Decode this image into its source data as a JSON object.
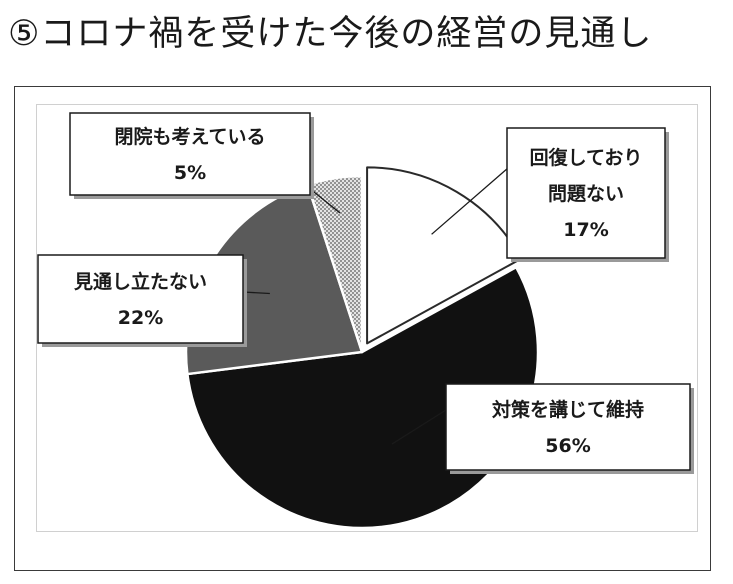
{
  "page": {
    "title": "⑤コロナ禍を受けた今後の経営の見通し"
  },
  "chart_data": {
    "type": "pie",
    "start_angle_deg": 0,
    "direction": "clockwise",
    "legend": "none (callout labels)",
    "slices": [
      {
        "label_lines": [
          "回復しており",
          "問題ない"
        ],
        "value": 17,
        "value_label": "17%",
        "color": "#ffffff",
        "pattern": "none",
        "exploded": true
      },
      {
        "label_lines": [
          "対策を講じて維持"
        ],
        "value": 56,
        "value_label": "56%",
        "color": "#111111",
        "pattern": "none",
        "exploded": false
      },
      {
        "label_lines": [
          "見通し立たない"
        ],
        "value": 22,
        "value_label": "22%",
        "color": "#5a5a5a",
        "pattern": "none",
        "exploded": false
      },
      {
        "label_lines": [
          "閉院も考えている"
        ],
        "value": 5,
        "value_label": "5%",
        "color": "#d8d8d8",
        "pattern": "dots",
        "exploded": false
      }
    ]
  }
}
